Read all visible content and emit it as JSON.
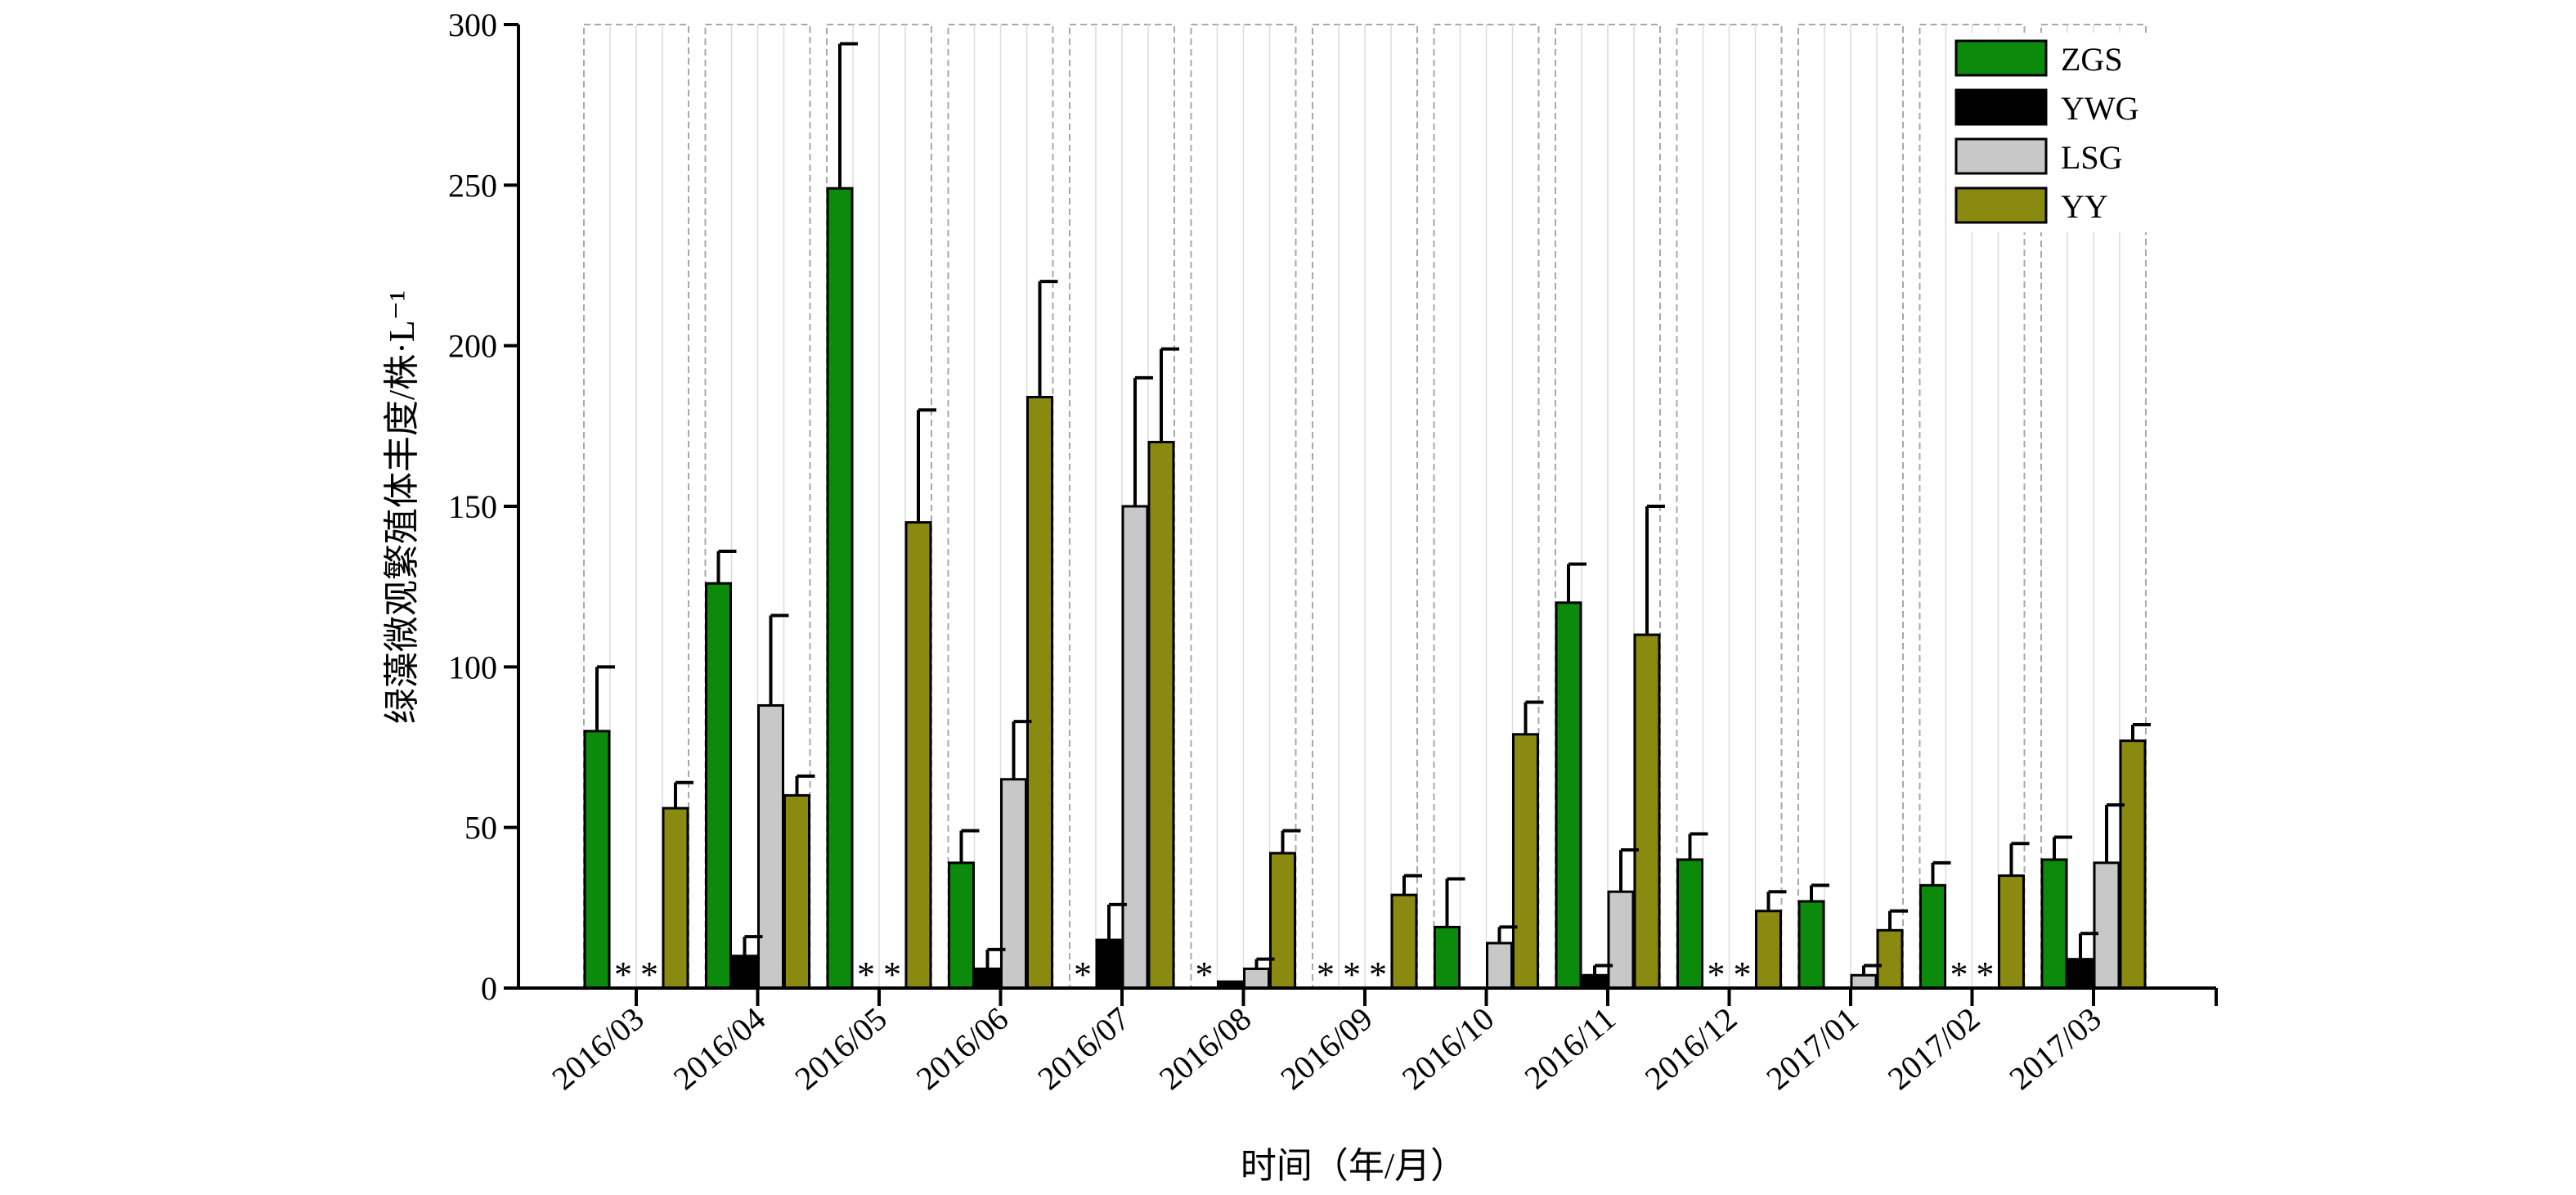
{
  "chart_data": {
    "type": "bar",
    "xlabel": "时间（年/月）",
    "ylabel": "绿藻微观繁殖体丰度/株·L⁻¹",
    "ylim": [
      0,
      300
    ],
    "yticks": [
      0,
      50,
      100,
      150,
      200,
      250,
      300
    ],
    "legend_position": "top-right",
    "grid": false,
    "categories": [
      "2016/03",
      "2016/04",
      "2016/05",
      "2016/06",
      "2016/07",
      "2016/08",
      "2016/09",
      "2016/10",
      "2016/11",
      "2016/12",
      "2017/01",
      "2017/02",
      "2017/03"
    ],
    "series": [
      {
        "name": "ZGS",
        "color": "#0b8a0b",
        "values": [
          80,
          126,
          249,
          39,
          0,
          0,
          0,
          19,
          120,
          40,
          27,
          32,
          40
        ],
        "errors": [
          20,
          10,
          45,
          10,
          0,
          0,
          0,
          15,
          12,
          8,
          5,
          7,
          7
        ]
      },
      {
        "name": "YWG",
        "color": "#000000",
        "values": [
          0,
          10,
          0,
          6,
          15,
          2,
          0,
          0,
          4,
          0,
          0,
          0,
          9
        ],
        "errors": [
          0,
          6,
          0,
          6,
          11,
          0,
          0,
          0,
          3,
          0,
          0,
          0,
          8
        ]
      },
      {
        "name": "LSG",
        "color": "#c8c8c8",
        "values": [
          0,
          88,
          0,
          65,
          150,
          6,
          0,
          14,
          30,
          0,
          4,
          0,
          39
        ],
        "errors": [
          0,
          28,
          0,
          18,
          40,
          3,
          0,
          5,
          13,
          0,
          3,
          0,
          18
        ]
      },
      {
        "name": "YY",
        "color": "#8a8a10",
        "values": [
          56,
          60,
          145,
          184,
          170,
          42,
          29,
          79,
          110,
          24,
          18,
          35,
          77
        ],
        "errors": [
          8,
          6,
          35,
          36,
          29,
          7,
          6,
          10,
          40,
          6,
          6,
          10,
          5
        ]
      }
    ],
    "not_detected_marker": "*",
    "not_detected": [
      [
        false,
        true,
        true,
        false
      ],
      [
        false,
        false,
        false,
        false
      ],
      [
        false,
        true,
        true,
        false
      ],
      [
        false,
        false,
        false,
        false
      ],
      [
        true,
        false,
        false,
        false
      ],
      [
        true,
        false,
        false,
        false
      ],
      [
        true,
        true,
        true,
        false
      ],
      [
        false,
        false,
        false,
        false
      ],
      [
        false,
        false,
        false,
        false
      ],
      [
        false,
        true,
        true,
        false
      ],
      [
        false,
        false,
        false,
        false
      ],
      [
        false,
        true,
        true,
        false
      ],
      [
        false,
        false,
        false,
        false
      ]
    ]
  }
}
